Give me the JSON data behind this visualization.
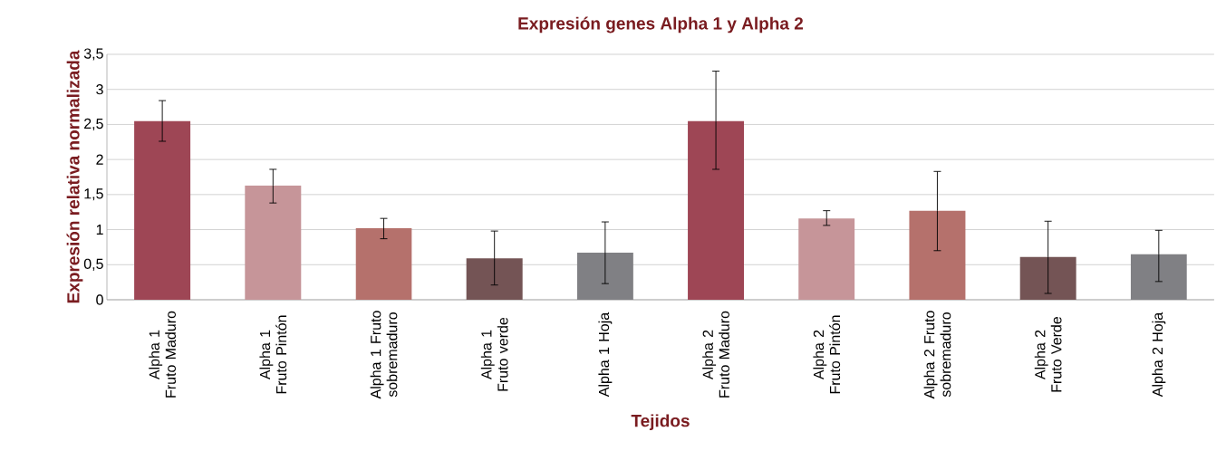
{
  "chart_data": {
    "type": "bar",
    "title": "Expresión genes Alpha 1 y Alpha 2",
    "xlabel": "Tejidos",
    "ylabel": "Expresión relativa normalizada",
    "categories": [
      "Alpha 1 Fruto Maduro",
      "Alpha 1 Fruto Pintón",
      "Alpha 1 Fruto sobremaduro",
      "Alpha 1 Fruto verde",
      "Alpha 1 Hoja",
      "Alpha 2 Fruto Maduro",
      "Alpha 2 Fruto Pintón",
      "Alpha 2 Fruto sobremaduro",
      "Alpha 2 Fruto Verde",
      "Alpha 2 Hoja"
    ],
    "values": [
      2.55,
      1.63,
      1.02,
      0.59,
      0.67,
      2.55,
      1.16,
      1.27,
      0.61,
      0.65
    ],
    "errors": [
      [
        2.26,
        2.84
      ],
      [
        1.38,
        1.86
      ],
      [
        0.87,
        1.16
      ],
      [
        0.21,
        0.98
      ],
      [
        0.23,
        1.11
      ],
      [
        1.86,
        3.26
      ],
      [
        1.06,
        1.27
      ],
      [
        0.7,
        1.83
      ],
      [
        0.09,
        1.12
      ],
      [
        0.26,
        0.99
      ]
    ],
    "colors": [
      "#9e4655",
      "#c69599",
      "#b5716c",
      "#745455",
      "#808084",
      "#9e4655",
      "#c69599",
      "#b5716c",
      "#745455",
      "#808084"
    ],
    "ylim": [
      0,
      3.5
    ],
    "yticks": [
      0,
      {
        "value": 0.5,
        "label": "0,5"
      },
      1,
      {
        "value": 1.5,
        "label": "1,5"
      },
      2,
      {
        "value": 2.5,
        "label": "2,5"
      },
      3,
      {
        "value": 3.5,
        "label": "3,5"
      }
    ],
    "grid": "y"
  }
}
